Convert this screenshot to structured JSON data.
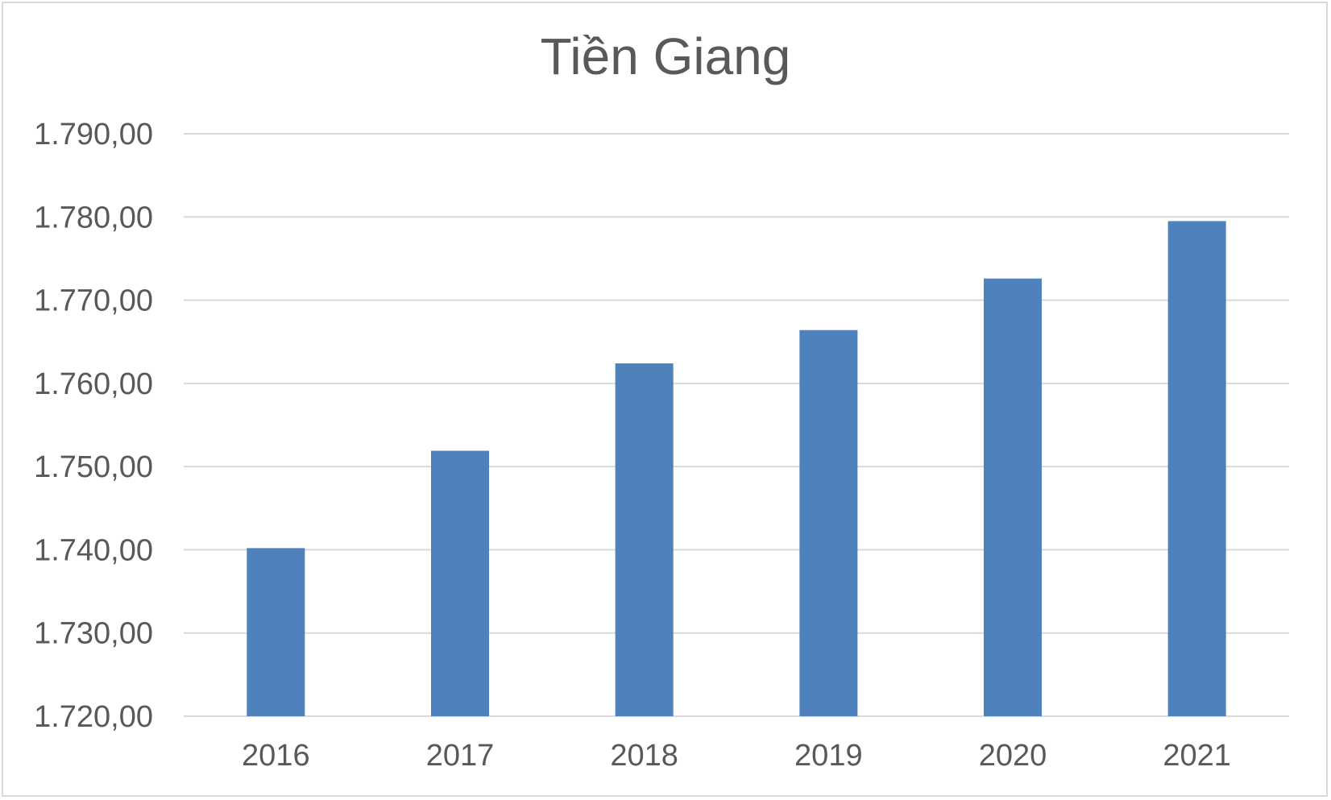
{
  "chart_data": {
    "type": "bar",
    "title": "Tiền Giang",
    "xlabel": "",
    "ylabel": "",
    "categories": [
      "2016",
      "2017",
      "2018",
      "2019",
      "2020",
      "2021"
    ],
    "values": [
      1740.2,
      1751.9,
      1762.4,
      1766.4,
      1772.6,
      1779.5
    ],
    "ylim": [
      1720,
      1790
    ],
    "yticks": [
      1720,
      1730,
      1740,
      1750,
      1760,
      1770,
      1780,
      1790
    ],
    "ytick_labels": [
      "1.720,00",
      "1.730,00",
      "1.740,00",
      "1.750,00",
      "1.760,00",
      "1.770,00",
      "1.780,00",
      "1.790,00"
    ],
    "grid": true,
    "legend": "none",
    "bar_color": "#4f81bd",
    "grid_color": "#d9d9d9"
  }
}
